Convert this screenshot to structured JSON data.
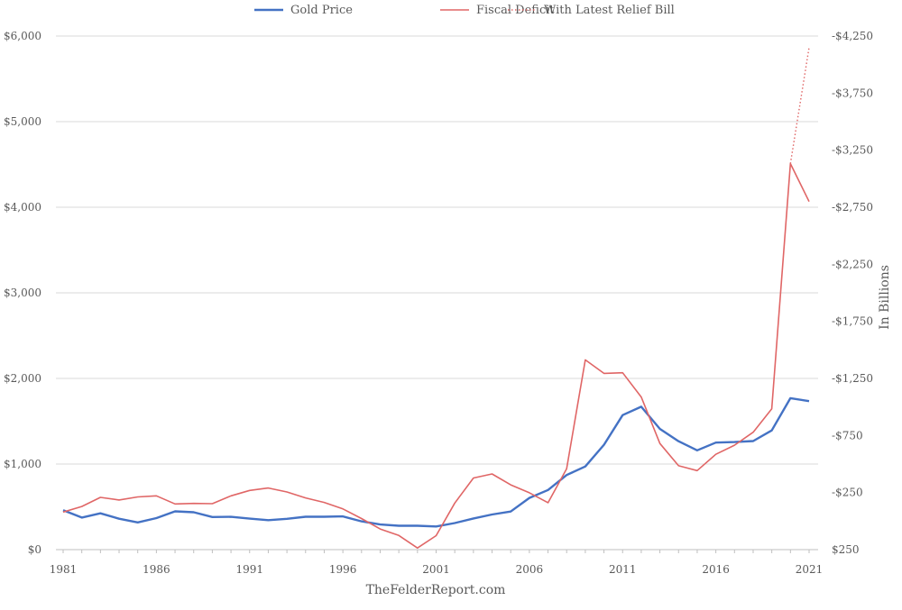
{
  "chart_data": {
    "type": "line",
    "title": "",
    "source": "TheFelderReport.com",
    "xlabel": "",
    "ylabel_left": "",
    "ylabel_right": "In Billions",
    "x_ticks": [
      "1981",
      "1986",
      "1991",
      "1996",
      "2001",
      "2006",
      "2011",
      "2016",
      "2021"
    ],
    "y_left_ticks": [
      "$0",
      "$1,000",
      "$2,000",
      "$3,000",
      "$4,000",
      "$5,000",
      "$6,000"
    ],
    "y_right_ticks": [
      "$250",
      "-$250",
      "-$750",
      "-$1,250",
      "-$1,750",
      "-$2,250",
      "-$2,750",
      "-$3,250",
      "-$3,750",
      "-$4,250"
    ],
    "xlim": [
      1981,
      2021
    ],
    "ylim_left": [
      0,
      6000
    ],
    "ylim_right": [
      250,
      -4250
    ],
    "grid": true,
    "legend_position": "top-center",
    "series": [
      {
        "name": "Gold Price",
        "axis": "left",
        "color": "#4472c4",
        "style": "solid",
        "x": [
          1981,
          1982,
          1983,
          1984,
          1985,
          1986,
          1987,
          1988,
          1989,
          1990,
          1991,
          1992,
          1993,
          1994,
          1995,
          1996,
          1997,
          1998,
          1999,
          2000,
          2001,
          2002,
          2003,
          2004,
          2005,
          2006,
          2007,
          2008,
          2009,
          2010,
          2011,
          2012,
          2013,
          2014,
          2015,
          2016,
          2017,
          2018,
          2019,
          2020,
          2021
        ],
        "values": [
          460,
          375,
          424,
          361,
          318,
          368,
          447,
          437,
          381,
          383,
          362,
          344,
          360,
          384,
          384,
          388,
          331,
          294,
          279,
          279,
          271,
          310,
          364,
          410,
          445,
          604,
          697,
          872,
          972,
          1225,
          1572,
          1669,
          1411,
          1266,
          1160,
          1251,
          1257,
          1268,
          1393,
          1770,
          1735
        ]
      },
      {
        "name": "Fiscal Deficit",
        "axis": "right",
        "color": "#e06666",
        "style": "solid",
        "x": [
          1981,
          1982,
          1983,
          1984,
          1985,
          1986,
          1987,
          1988,
          1989,
          1990,
          1991,
          1992,
          1993,
          1994,
          1995,
          1996,
          1997,
          1998,
          1999,
          2000,
          2001,
          2002,
          2003,
          2004,
          2005,
          2006,
          2007,
          2008,
          2009,
          2010,
          2011,
          2012,
          2013,
          2014,
          2015,
          2016,
          2017,
          2018,
          2019,
          2020,
          2021
        ],
        "values": [
          -79,
          -128,
          -208,
          -185,
          -212,
          -221,
          -150,
          -155,
          -153,
          -221,
          -269,
          -290,
          -255,
          -203,
          -164,
          -107,
          -22,
          69,
          126,
          236,
          128,
          -158,
          -378,
          -413,
          -318,
          -248,
          -161,
          -459,
          -1413,
          -1294,
          -1300,
          -1087,
          -680,
          -485,
          -442,
          -585,
          -665,
          -779,
          -984,
          -3132,
          -2800
        ]
      },
      {
        "name": "With Latest Relief Bill",
        "axis": "right",
        "color": "#e06666",
        "style": "dotted",
        "x": [
          2020,
          2021
        ],
        "values": [
          -3132,
          -4150
        ]
      }
    ]
  }
}
